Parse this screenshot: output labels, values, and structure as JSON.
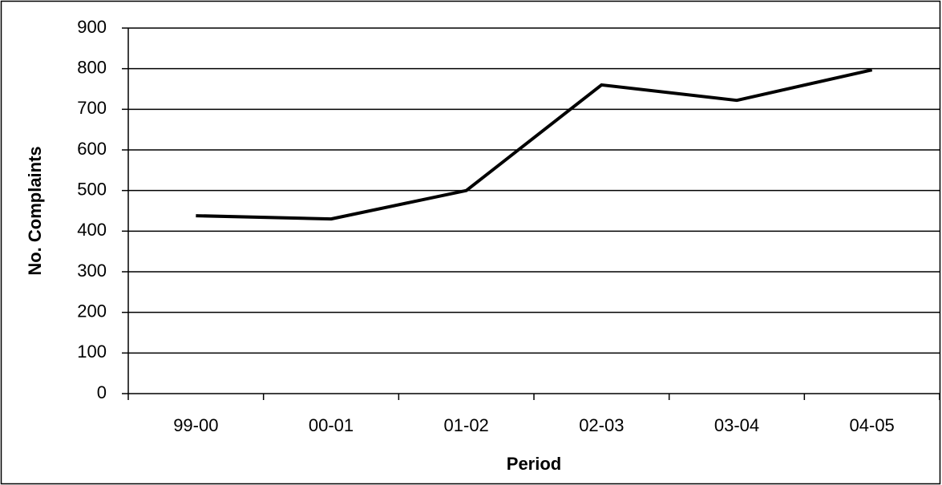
{
  "chart_data": {
    "type": "line",
    "x_label": "Period",
    "y_label": "No. Complaints",
    "categories": [
      "99-00",
      "00-01",
      "01-02",
      "02-03",
      "03-04",
      "04-05"
    ],
    "values": [
      438,
      430,
      500,
      760,
      722,
      797
    ],
    "color": "#000000",
    "ylim": [
      0,
      900
    ],
    "yticks": [
      0,
      100,
      200,
      300,
      400,
      500,
      600,
      700,
      800,
      900
    ],
    "grid": true
  }
}
